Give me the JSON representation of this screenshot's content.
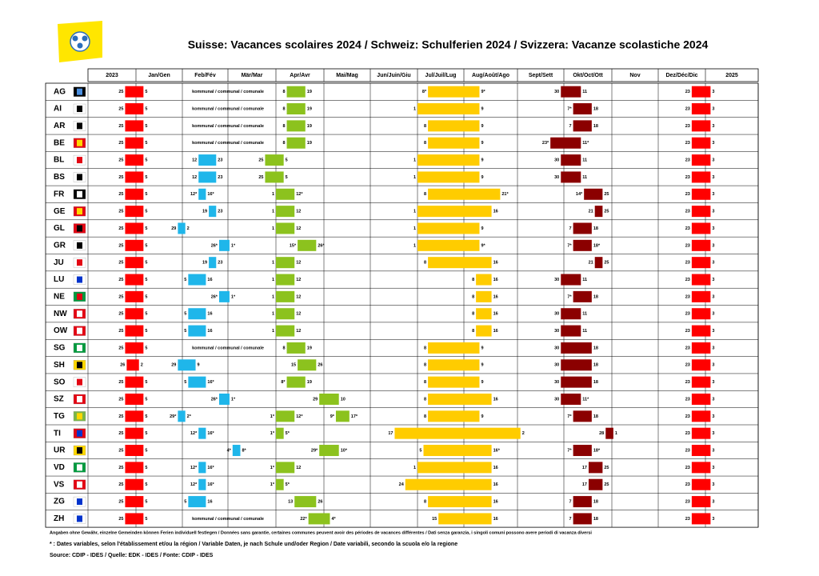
{
  "header": {
    "title": "Suisse: Vacances scolaires 2024 / Schweiz: Schulferien 2024 / Svizzera: Vacanze scolastiche 2024"
  },
  "table": {
    "columns": [
      "2023",
      "Jan/Gen",
      "Feb/Fév",
      "Mär/Mar",
      "Apr/Avr",
      "Mai/Mag",
      "Jun/Juin/Giu",
      "Jul/Juil/Lug",
      "Aug/Août/Ago",
      "Sept/Sett",
      "Okt/Oct/Ott",
      "Nov",
      "Dez/Déc/Dic",
      "2025"
    ],
    "rows": [
      {
        "code": "AG",
        "periods": [
          {
            "from": "25",
            "to": "5"
          },
          {
            "note": "kommunal / communal / comunale"
          },
          {
            "from": "8",
            "to": "19"
          },
          {
            "from": "8*",
            "to": "9*"
          },
          {
            "from": "30",
            "to": "11"
          },
          {
            "from": "23",
            "to": "3"
          }
        ]
      },
      {
        "code": "AI",
        "periods": [
          {
            "from": "25",
            "to": "5"
          },
          {
            "note": "kommunal / communal / comunale"
          },
          {
            "from": "8",
            "to": "19"
          },
          {
            "from": "1",
            "to": "9"
          },
          {
            "from": "7*",
            "to": "18"
          },
          {
            "from": "23",
            "to": "3"
          }
        ]
      },
      {
        "code": "AR",
        "periods": [
          {
            "from": "25",
            "to": "5"
          },
          {
            "note": "kommunal / communal / comunale"
          },
          {
            "from": "8",
            "to": "19"
          },
          {
            "from": "8",
            "to": "9"
          },
          {
            "from": "7",
            "to": "18"
          },
          {
            "from": "23",
            "to": "3"
          }
        ]
      },
      {
        "code": "BE",
        "periods": [
          {
            "from": "25",
            "to": "5"
          },
          {
            "note": "kommunal / communal / comunale"
          },
          {
            "from": "8",
            "to": "19"
          },
          {
            "from": "8",
            "to": "9"
          },
          {
            "from": "23*",
            "to": "11*"
          },
          {
            "from": "23",
            "to": "3"
          }
        ]
      },
      {
        "code": "BL",
        "periods": [
          {
            "from": "25",
            "to": "5"
          },
          {
            "from": "12",
            "to": "23"
          },
          {
            "from": "25",
            "to": "5"
          },
          {
            "from": "1",
            "to": "9"
          },
          {
            "from": "30",
            "to": "11"
          },
          {
            "from": "23",
            "to": "3"
          }
        ]
      },
      {
        "code": "BS",
        "periods": [
          {
            "from": "25",
            "to": "5"
          },
          {
            "from": "12",
            "to": "23"
          },
          {
            "from": "25",
            "to": "5"
          },
          {
            "from": "1",
            "to": "9"
          },
          {
            "from": "30",
            "to": "11"
          },
          {
            "from": "23",
            "to": "3"
          }
        ]
      },
      {
        "code": "FR",
        "periods": [
          {
            "from": "25",
            "to": "5"
          },
          {
            "from": "12*",
            "to": "16*"
          },
          {
            "from": "1",
            "to": "12*"
          },
          {
            "from": "8",
            "to": "21*"
          },
          {
            "from": "14*",
            "to": "25"
          },
          {
            "from": "23",
            "to": "3"
          }
        ]
      },
      {
        "code": "GE",
        "periods": [
          {
            "from": "25",
            "to": "5"
          },
          {
            "from": "19",
            "to": "23"
          },
          {
            "from": "1",
            "to": "12"
          },
          {
            "from": "1",
            "to": "16"
          },
          {
            "from": "21",
            "to": "25"
          },
          {
            "from": "23",
            "to": "3"
          }
        ]
      },
      {
        "code": "GL",
        "periods": [
          {
            "from": "25",
            "to": "5"
          },
          {
            "from": "29",
            "to": "2"
          },
          {
            "from": "1",
            "to": "12"
          },
          {
            "from": "1",
            "to": "9"
          },
          {
            "from": "7",
            "to": "18"
          },
          {
            "from": "23",
            "to": "3"
          }
        ]
      },
      {
        "code": "GR",
        "periods": [
          {
            "from": "25",
            "to": "5"
          },
          {
            "from": "26*",
            "to": "1*"
          },
          {
            "from": "15*",
            "to": "26*"
          },
          {
            "from": "1",
            "to": "9*"
          },
          {
            "from": "7*",
            "to": "18*"
          },
          {
            "from": "23",
            "to": "3"
          }
        ]
      },
      {
        "code": "JU",
        "periods": [
          {
            "from": "25",
            "to": "5"
          },
          {
            "from": "19",
            "to": "23"
          },
          {
            "from": "1",
            "to": "12"
          },
          {
            "from": "8",
            "to": "16"
          },
          {
            "from": "21",
            "to": "25"
          },
          {
            "from": "23",
            "to": "3"
          }
        ]
      },
      {
        "code": "LU",
        "periods": [
          {
            "from": "25",
            "to": "5"
          },
          {
            "from": "5",
            "to": "16"
          },
          {
            "from": "1",
            "to": "12"
          },
          {
            "from": "8",
            "to": "16"
          },
          {
            "from": "30",
            "to": "11"
          },
          {
            "from": "23",
            "to": "3"
          }
        ]
      },
      {
        "code": "NE",
        "periods": [
          {
            "from": "25",
            "to": "5"
          },
          {
            "from": "26*",
            "to": "1*"
          },
          {
            "from": "1",
            "to": "12"
          },
          {
            "from": "8",
            "to": "16"
          },
          {
            "from": "7*",
            "to": "18"
          },
          {
            "from": "23",
            "to": "3"
          }
        ]
      },
      {
        "code": "NW",
        "periods": [
          {
            "from": "25",
            "to": "5"
          },
          {
            "from": "5",
            "to": "16"
          },
          {
            "from": "1",
            "to": "12"
          },
          {
            "from": "8",
            "to": "16"
          },
          {
            "from": "30",
            "to": "11"
          },
          {
            "from": "23",
            "to": "3"
          }
        ]
      },
      {
        "code": "OW",
        "periods": [
          {
            "from": "25",
            "to": "5"
          },
          {
            "from": "5",
            "to": "16"
          },
          {
            "from": "1",
            "to": "12"
          },
          {
            "from": "8",
            "to": "16"
          },
          {
            "from": "30",
            "to": "11"
          },
          {
            "from": "23",
            "to": "3"
          }
        ]
      },
      {
        "code": "SG",
        "periods": [
          {
            "from": "25",
            "to": "5"
          },
          {
            "note": "kommunal / communal / comunale"
          },
          {
            "from": "8",
            "to": "19"
          },
          {
            "from": "8",
            "to": "9"
          },
          {
            "from": "30",
            "to": "18"
          },
          {
            "from": "23",
            "to": "3"
          }
        ]
      },
      {
        "code": "SH",
        "periods": [
          {
            "from": "26",
            "to": "2"
          },
          {
            "from": "29",
            "to": "9"
          },
          {
            "from": "15",
            "to": "26"
          },
          {
            "from": "8",
            "to": "9"
          },
          {
            "from": "30",
            "to": "18"
          },
          {
            "from": "23",
            "to": "3"
          }
        ]
      },
      {
        "code": "SO",
        "periods": [
          {
            "from": "25",
            "to": "5"
          },
          {
            "from": "5",
            "to": "16*"
          },
          {
            "from": "8*",
            "to": "19"
          },
          {
            "from": "8",
            "to": "9"
          },
          {
            "from": "30",
            "to": "18"
          },
          {
            "from": "23",
            "to": "3"
          }
        ]
      },
      {
        "code": "SZ",
        "periods": [
          {
            "from": "25",
            "to": "5"
          },
          {
            "from": "26*",
            "to": "1*"
          },
          {
            "from": "29",
            "to": "10"
          },
          {
            "from": "8",
            "to": "16"
          },
          {
            "from": "30",
            "to": "11*"
          },
          {
            "from": "23",
            "to": "3"
          }
        ]
      },
      {
        "code": "TG",
        "periods": [
          {
            "from": "25",
            "to": "5"
          },
          {
            "from": "29*",
            "to": "2*"
          },
          {
            "from": "1*",
            "to": "12*"
          },
          {
            "from": "9*",
            "to": "17*"
          },
          {
            "from": "8",
            "to": "9"
          },
          {
            "from": "7*",
            "to": "18"
          },
          {
            "from": "23",
            "to": "3"
          }
        ]
      },
      {
        "code": "TI",
        "periods": [
          {
            "from": "25",
            "to": "5"
          },
          {
            "from": "12*",
            "to": "16*"
          },
          {
            "from": "1*",
            "to": "5*"
          },
          {
            "from": "17",
            "to": "2"
          },
          {
            "from": "28",
            "to": "1"
          },
          {
            "from": "23",
            "to": "3"
          }
        ]
      },
      {
        "code": "UR",
        "periods": [
          {
            "from": "25",
            "to": "5"
          },
          {
            "from": "4*",
            "to": "8*"
          },
          {
            "from": "29*",
            "to": "10*"
          },
          {
            "from": "5",
            "to": "16*"
          },
          {
            "from": "7*",
            "to": "18*"
          },
          {
            "from": "23",
            "to": "3"
          }
        ]
      },
      {
        "code": "VD",
        "periods": [
          {
            "from": "25",
            "to": "5"
          },
          {
            "from": "12*",
            "to": "16*"
          },
          {
            "from": "1*",
            "to": "12"
          },
          {
            "from": "1",
            "to": "16"
          },
          {
            "from": "17",
            "to": "25"
          },
          {
            "from": "23",
            "to": "3"
          }
        ]
      },
      {
        "code": "VS",
        "periods": [
          {
            "from": "25",
            "to": "5"
          },
          {
            "from": "12*",
            "to": "16*"
          },
          {
            "from": "1*",
            "to": "5*"
          },
          {
            "from": "24",
            "to": "16"
          },
          {
            "from": "17",
            "to": "25"
          },
          {
            "from": "23",
            "to": "3"
          }
        ]
      },
      {
        "code": "ZG",
        "periods": [
          {
            "from": "25",
            "to": "5"
          },
          {
            "from": "5",
            "to": "16"
          },
          {
            "from": "13",
            "to": "26"
          },
          {
            "from": "8",
            "to": "16"
          },
          {
            "from": "7",
            "to": "18"
          },
          {
            "from": "23",
            "to": "3"
          }
        ]
      },
      {
        "code": "ZH",
        "periods": [
          {
            "from": "25",
            "to": "5"
          },
          {
            "note": "kommunal / communal / comunale"
          },
          {
            "from": "22*",
            "to": "4*"
          },
          {
            "from": "15",
            "to": "16"
          },
          {
            "from": "7",
            "to": "18"
          },
          {
            "from": "23",
            "to": "3"
          }
        ]
      }
    ]
  },
  "footer": {
    "disclaimer": "Angaben ohne Gewähr, einzelne Gemeinden können Ferien individuell festlegen / Données sans garantie, certaines communes peuvent avoir des périodes de vacances différentes / Dati senza garanzia, i singoli comuni possono avere periodi di vacanza diversi",
    "note": "* : Dates variables, selon l'établissement et/ou la région / Variable Daten, je nach Schule und/oder Region / Date variabili, secondo la scuola e/o la regione",
    "source": "Source: CDIP - IDES / Quelle: EDK - IDES / Fonte: CDIP - IDES"
  }
}
